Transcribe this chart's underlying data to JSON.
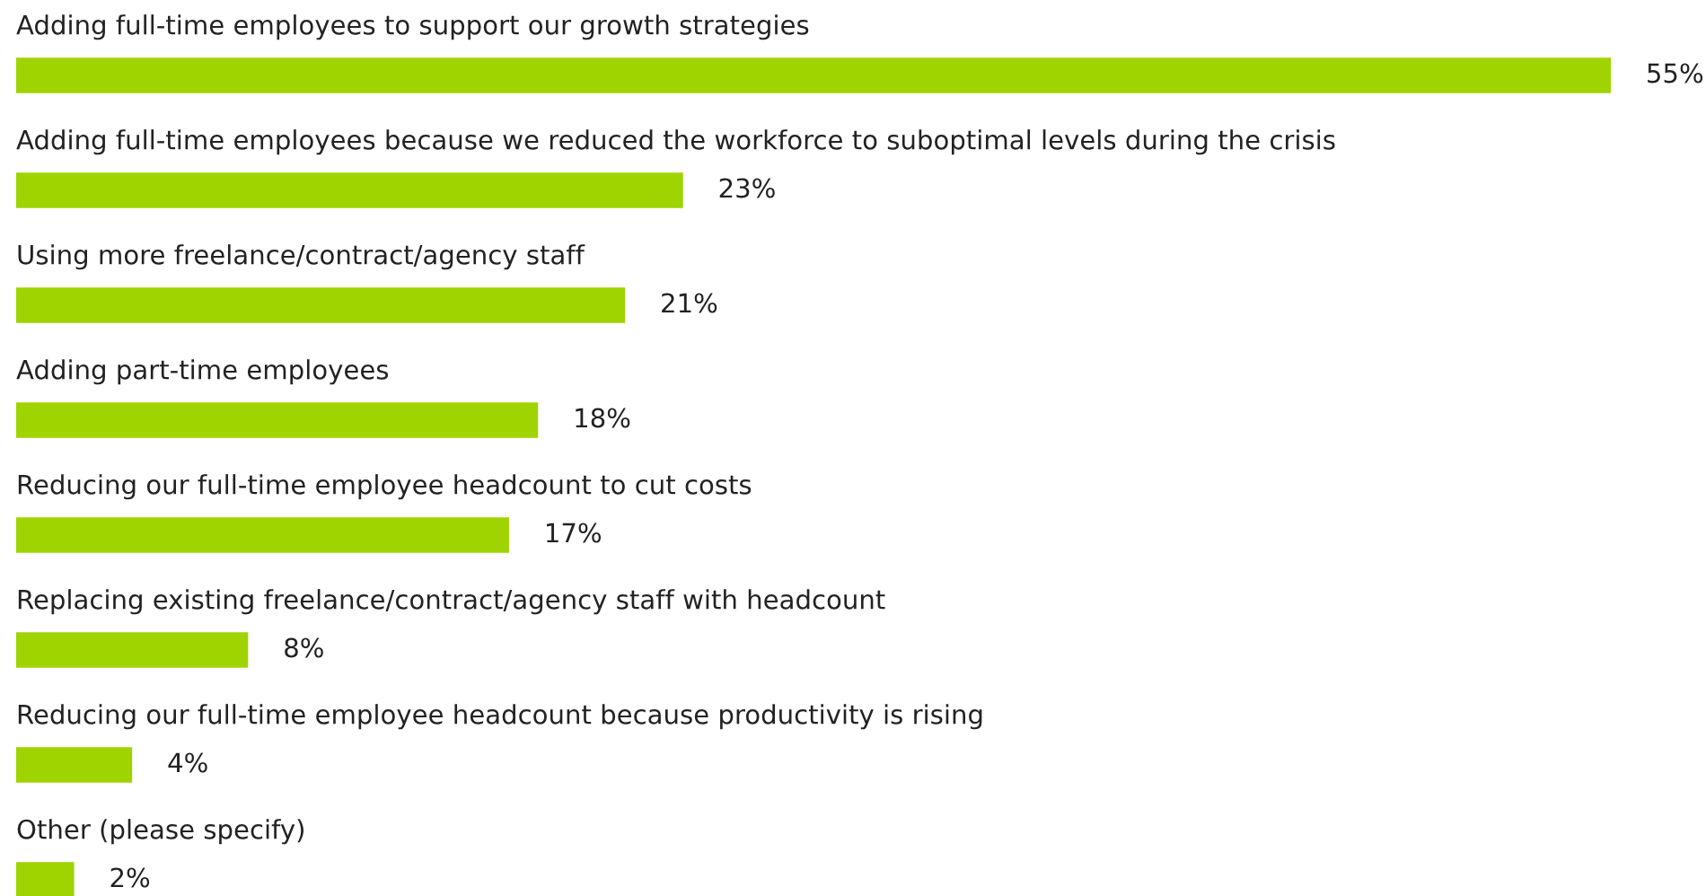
{
  "chart_data": {
    "type": "bar",
    "orientation": "horizontal",
    "categories": [
      "Adding full-time employees to support our growth strategies",
      "Adding full-time employees because we reduced the workforce to suboptimal levels during the crisis",
      "Using more freelance/contract/agency staff",
      "Adding part-time employees",
      "Reducing our full-time employee headcount to cut costs",
      "Replacing existing freelance/contract/agency staff with headcount",
      "Reducing our full-time employee headcount because productivity is rising",
      "Other (please specify)"
    ],
    "values": [
      55,
      23,
      21,
      18,
      17,
      8,
      4,
      2
    ],
    "value_labels": [
      "55%",
      "23%",
      "21%",
      "18%",
      "17%",
      "8%",
      "4%",
      "2%"
    ],
    "color": "#9fd400",
    "xlim": [
      0,
      55
    ]
  }
}
